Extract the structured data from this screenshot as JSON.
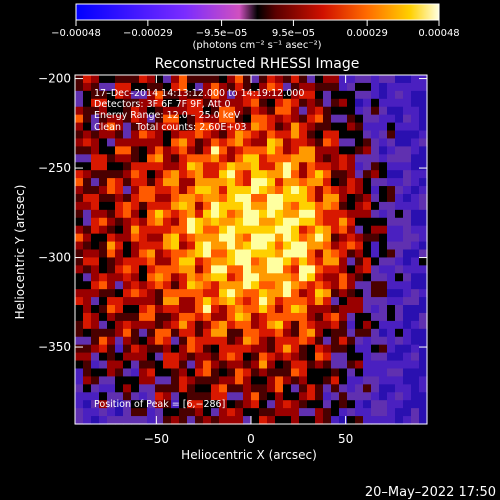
{
  "chart_data": {
    "type": "heatmap",
    "title": "Reconstructed RHESSI Image",
    "xlabel": "Heliocentric X (arcsec)",
    "ylabel": "Heliocentric Y (arcsec)",
    "xlim": [
      -93,
      93
    ],
    "ylim": [
      -393,
      -198
    ],
    "x_ticks": [
      -50,
      0,
      50
    ],
    "x_tick_labels": [
      "−50",
      "0",
      "50"
    ],
    "y_ticks": [
      -200,
      -250,
      -300,
      -350
    ],
    "y_tick_labels": [
      "−200",
      "−250",
      "−300",
      "−350"
    ],
    "colorbar": {
      "range": [
        -0.00048,
        0.00048
      ],
      "ticks": [
        -0.00048,
        -0.00029,
        -9.5e-05,
        9.5e-05,
        0.00029,
        0.00048
      ],
      "tick_labels": [
        "−0.00048",
        "−0.00029",
        "−9.5e−05",
        "9.5e−05",
        "0.00029",
        "0.00048"
      ],
      "units_label": "(photons cm⁻² s⁻¹ asec⁻²)"
    },
    "annotations": [
      "17–Dec–2014 14:13:12.000 to 14:19:12.000",
      "Detectors: 3F 6F 7F 9F, Att 0",
      "Energy Range: 12.0 – 25.0 keV",
      "Clean     Total counts: 2.60E+03"
    ],
    "peak_label": "Position of Peak = [6,−286]",
    "peak": [
      6,
      -286
    ],
    "colors": [
      "#000000",
      "#2a10a0",
      "#5a2cc8",
      "#000000",
      "#3a0000",
      "#a00000",
      "#e02000",
      "#ff7000",
      "#ffd000",
      "#ffffa0"
    ]
  },
  "footer": {
    "date": "20–May–2022 17:50"
  }
}
